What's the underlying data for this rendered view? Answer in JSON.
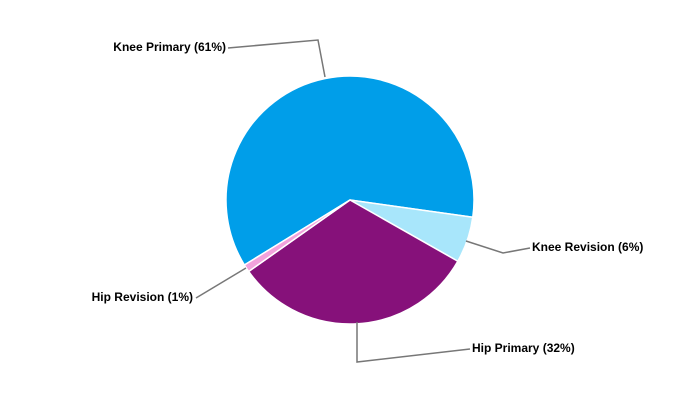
{
  "chart_data": {
    "type": "pie",
    "categories": [
      "Knee Primary (61%)",
      "Knee Revision (6%)",
      "Hip Primary (32%)",
      "Hip Revision (1%)"
    ],
    "values": [
      61,
      6,
      32,
      1
    ],
    "colors": [
      "#009ee9",
      "#a8e6fb",
      "#86117a",
      "#f2a2dc"
    ]
  }
}
